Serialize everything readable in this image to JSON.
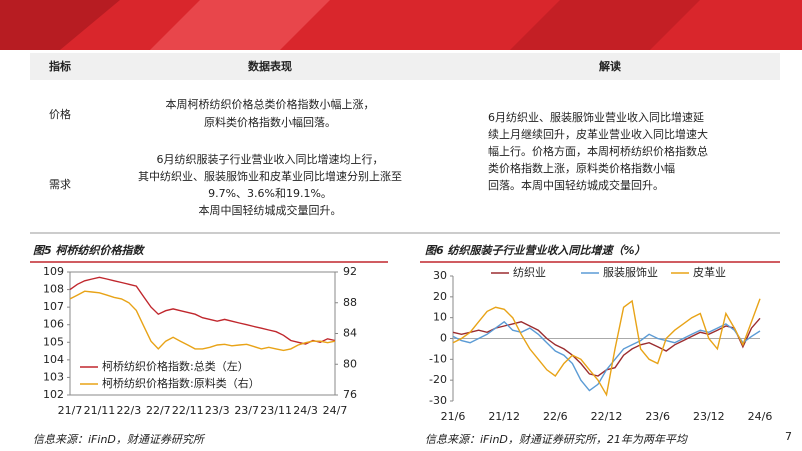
{
  "table": {
    "headers": [
      "指标",
      "数据表现",
      "解读"
    ],
    "rows": [
      {
        "indicator": "价格",
        "data": [
          "本周柯桥纺织价格总类价格指数小幅上涨，",
          "原料类价格指数小幅回落。"
        ]
      },
      {
        "indicator": "需求",
        "data": [
          "6月纺织服装子行业营业收入同比增速均上行，",
          "其中纺织业、服装服饰业和皮革业同比增速分别上涨至",
          "9.7%、3.6%和19.1%。",
          "本周中国轻纺城成交量回升。"
        ]
      }
    ],
    "interpretation": [
      "6月纺织业、服装服饰业营业收入同比增速延",
      "续上月继续回升，皮革业营业收入同比增速大",
      "幅上行。价格方面，本周柯桥纺织价格指数总",
      "类价格指数上涨，原料类价格指数小幅",
      "回落。本周中国轻纺城成交量回升。"
    ]
  },
  "chart_data": [
    {
      "type": "line",
      "title": "图5 柯桥纺织价格指数",
      "source": "信息来源：iFinD，财通证券研究所",
      "categories": [
        "21/7",
        null,
        null,
        null,
        "21/11",
        null,
        null,
        null,
        "22/3",
        null,
        null,
        null,
        "22/7",
        null,
        null,
        null,
        "22/11",
        null,
        null,
        null,
        "23/3",
        null,
        null,
        null,
        "23/7",
        null,
        null,
        null,
        "23/11",
        null,
        null,
        null,
        "24/3",
        null,
        null,
        null,
        "24/7"
      ],
      "series": [
        {
          "name": "柯桥纺织价格指数:总类（左）",
          "color": "#c0272d",
          "values": [
            108.0,
            108.3,
            108.5,
            108.6,
            108.7,
            108.6,
            108.5,
            108.4,
            108.3,
            108.2,
            107.6,
            107.0,
            106.6,
            106.8,
            106.9,
            106.8,
            106.7,
            106.6,
            106.4,
            106.3,
            106.2,
            106.3,
            106.2,
            106.1,
            106.0,
            105.9,
            105.8,
            105.7,
            105.6,
            105.4,
            105.1,
            105.0,
            104.9,
            105.1,
            105.0,
            105.2,
            105.1
          ]
        },
        {
          "name": "柯桥纺织价格指数:原料类（右）",
          "color": "#e8a317",
          "axis": "y2",
          "values": [
            88.5,
            89.0,
            89.5,
            89.4,
            89.3,
            89.0,
            88.7,
            88.5,
            88.0,
            87.0,
            85.0,
            83.0,
            82.0,
            83.0,
            83.5,
            83.0,
            82.5,
            82.0,
            82.0,
            82.2,
            82.5,
            82.6,
            82.4,
            82.5,
            82.6,
            82.3,
            82.0,
            82.2,
            82.0,
            81.8,
            82.0,
            82.5,
            82.8,
            83.0,
            83.0,
            82.8,
            83.0
          ]
        }
      ],
      "ylim": [
        102,
        109
      ],
      "yticks": [
        102,
        103,
        104,
        105,
        106,
        107,
        108,
        109
      ],
      "y2lim": [
        76,
        92
      ],
      "y2ticks": [
        76,
        80,
        84,
        88,
        92
      ],
      "grid": false,
      "legend": "lower left"
    },
    {
      "type": "line",
      "title": "图6 纺织服装子行业营业收入同比增速（%）",
      "source": "信息来源：iFinD，财通证券研究所，21年为两年平均",
      "categories": [
        "21/6",
        null,
        null,
        null,
        null,
        null,
        "21/12",
        null,
        null,
        null,
        null,
        null,
        "22/6",
        null,
        null,
        null,
        null,
        null,
        "22/12",
        null,
        null,
        null,
        null,
        null,
        "23/6",
        null,
        null,
        null,
        null,
        null,
        "23/12",
        null,
        null,
        null,
        null,
        null,
        "24/6"
      ],
      "series": [
        {
          "name": "纺织业",
          "color": "#9b2d30",
          "values": [
            3,
            2,
            3,
            4,
            3,
            5,
            6,
            7,
            8,
            6,
            4,
            0,
            -3,
            -5,
            -8,
            -12,
            -17,
            -18,
            -15,
            -14,
            -8,
            -5,
            -3,
            -2,
            -4,
            -6,
            -3,
            -1,
            1,
            3,
            2,
            4,
            6,
            5,
            -4,
            5,
            9.7
          ]
        },
        {
          "name": "服装服饰业",
          "color": "#5b9bd5",
          "values": [
            1,
            -1,
            -2,
            0,
            2,
            5,
            8,
            4,
            3,
            5,
            2,
            -2,
            -6,
            -8,
            -12,
            -20,
            -25,
            -22,
            -15,
            -10,
            -5,
            -3,
            -1,
            2,
            0,
            -1,
            -2,
            0,
            2,
            4,
            3,
            5,
            7,
            4,
            -2,
            1,
            3.6
          ]
        },
        {
          "name": "皮革业",
          "color": "#e8a317",
          "values": [
            -2,
            0,
            3,
            8,
            13,
            15,
            14,
            10,
            2,
            -5,
            -10,
            -15,
            -18,
            -12,
            -8,
            -10,
            -15,
            -20,
            -27,
            -5,
            15,
            18,
            -5,
            -10,
            -12,
            0,
            4,
            7,
            10,
            12,
            0,
            -5,
            12,
            5,
            -3,
            8,
            19.1
          ]
        }
      ],
      "ylim": [
        -30,
        30
      ],
      "yticks": [
        -30,
        -20,
        -10,
        0,
        10,
        20,
        30
      ],
      "grid": false,
      "legend": "upper center"
    }
  ],
  "page_number": "7"
}
